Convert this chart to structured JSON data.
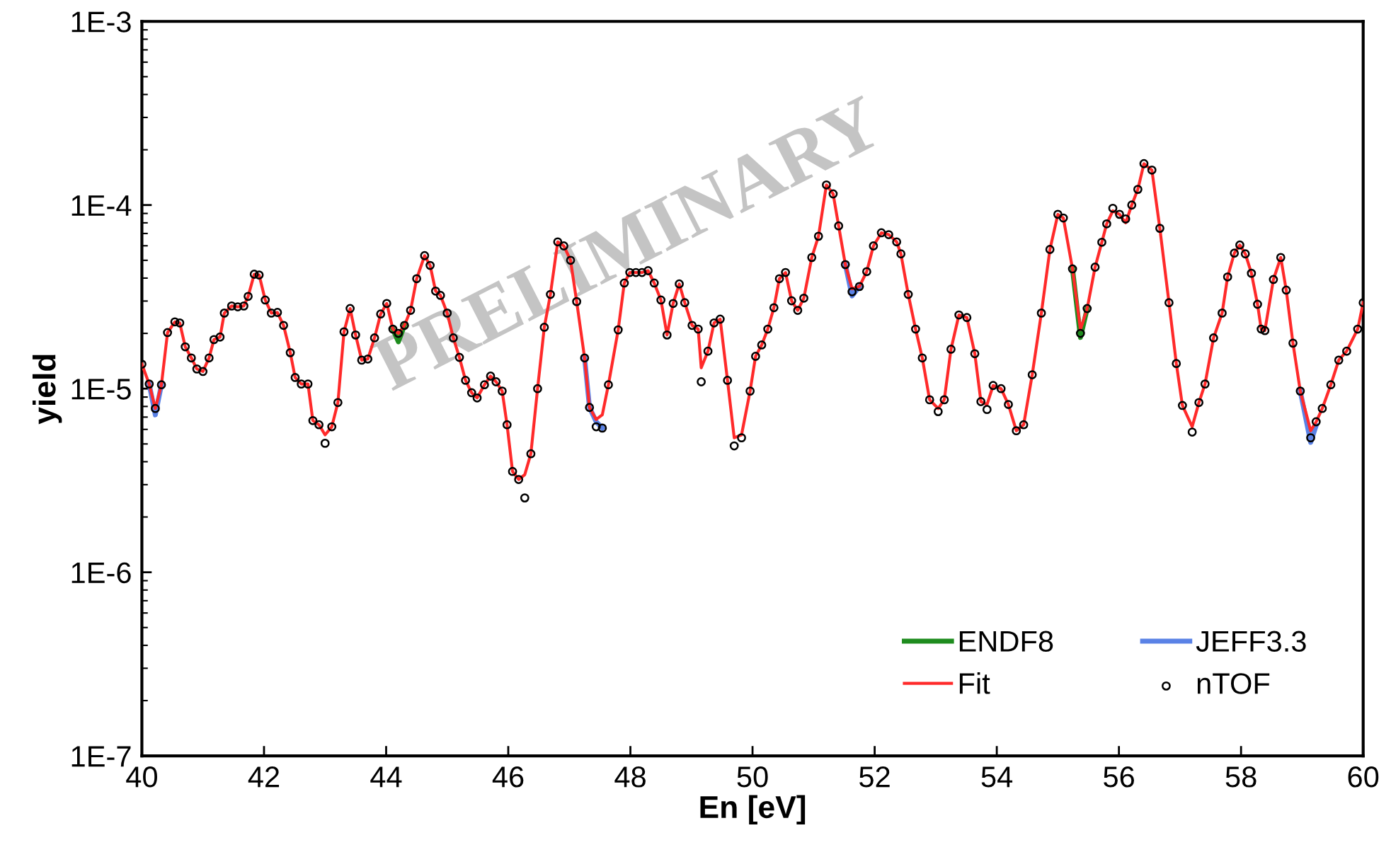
{
  "chart_data": {
    "type": "line",
    "xlabel": "En [eV]",
    "ylabel": "yield",
    "log": "y",
    "xlim": [
      40,
      60
    ],
    "xticks": [
      40,
      42,
      44,
      46,
      48,
      50,
      52,
      54,
      56,
      58,
      60
    ],
    "ylim": [
      1e-07,
      0.001
    ],
    "yticks": [
      {
        "value": 1e-07,
        "label": "1E-7"
      },
      {
        "value": 1e-06,
        "label": "1E-6"
      },
      {
        "value": 1e-05,
        "label": "1E-5"
      },
      {
        "value": 0.0001,
        "label": "1E-4"
      },
      {
        "value": 0.001,
        "label": "1E-3"
      }
    ],
    "grid": false,
    "legend": "bottom right",
    "x": [
      40.0,
      40.12,
      40.22,
      40.32,
      40.42,
      40.54,
      40.62,
      40.71,
      40.81,
      40.9,
      41.0,
      41.1,
      41.18,
      41.28,
      41.35,
      41.47,
      41.57,
      41.67,
      41.74,
      41.84,
      41.92,
      42.02,
      42.12,
      42.22,
      42.32,
      42.43,
      42.51,
      42.61,
      42.72,
      42.8,
      42.9,
      43.0,
      43.11,
      43.21,
      43.31,
      43.41,
      43.5,
      43.6,
      43.7,
      43.81,
      43.91,
      44.01,
      44.11,
      44.2,
      44.3,
      44.4,
      44.5,
      44.63,
      44.72,
      44.81,
      44.89,
      45.0,
      45.1,
      45.2,
      45.3,
      45.4,
      45.49,
      45.61,
      45.71,
      45.8,
      45.9,
      45.98,
      46.07,
      46.17,
      46.27,
      46.37,
      46.48,
      46.59,
      46.69,
      46.81,
      46.91,
      47.02,
      47.12,
      47.25,
      47.33,
      47.44,
      47.54,
      47.64,
      47.8,
      47.9,
      47.99,
      48.09,
      48.19,
      48.29,
      48.39,
      48.5,
      48.6,
      48.7,
      48.8,
      48.89,
      49.01,
      49.11,
      49.16,
      49.27,
      49.37,
      49.47,
      49.59,
      49.7,
      49.82,
      49.96,
      50.05,
      50.15,
      50.25,
      50.35,
      50.44,
      50.54,
      50.64,
      50.74,
      50.84,
      50.97,
      51.08,
      51.21,
      51.32,
      51.41,
      51.52,
      51.63,
      51.75,
      51.87,
      51.98,
      52.11,
      52.23,
      52.36,
      52.43,
      52.55,
      52.67,
      52.78,
      52.9,
      53.04,
      53.14,
      53.25,
      53.38,
      53.51,
      53.64,
      53.74,
      53.84,
      53.94,
      54.07,
      54.19,
      54.32,
      54.44,
      54.58,
      54.73,
      54.87,
      55.0,
      55.09,
      55.24,
      55.37,
      55.48,
      55.61,
      55.72,
      55.8,
      55.9,
      56.01,
      56.11,
      56.21,
      56.31,
      56.41,
      56.54,
      56.67,
      56.82,
      56.94,
      57.04,
      57.2,
      57.31,
      57.41,
      57.55,
      57.69,
      57.78,
      57.89,
      57.98,
      58.07,
      58.17,
      58.27,
      58.33,
      58.39,
      58.53,
      58.65,
      58.74,
      58.85,
      58.97,
      59.14,
      59.23,
      59.33,
      59.47,
      59.6,
      59.73,
      59.91,
      60.0
    ],
    "series": [
      {
        "name": "ENDF8",
        "color": "#1e8c1e",
        "x": [
          44.11,
          44.2,
          44.3,
          50.0,
          55.24,
          55.37,
          55.48
        ],
        "values": [
          2.11e-05,
          1.8e-05,
          2.21e-05,
          null,
          4.49e-05,
          1.9e-05,
          2.73e-05
        ]
      },
      {
        "name": "JEFF3.3",
        "color": "#5a82e6",
        "x": [
          40.12,
          40.22,
          40.32,
          43.0,
          47.25,
          47.33,
          47.44,
          47.54,
          49.0,
          51.52,
          51.63,
          51.75,
          55.0,
          58.97,
          59.14,
          59.23
        ],
        "values": [
          1.06e-05,
          7.2e-06,
          1.05e-05,
          null,
          1.47e-05,
          7.9e-06,
          6.6e-06,
          6.1e-06,
          null,
          4.74e-05,
          3.2e-05,
          3.6e-05,
          null,
          9.7e-06,
          5.1e-06,
          6.3e-06
        ]
      },
      {
        "name": "Fit",
        "color": "#ff2a2a",
        "values": [
          1.36e-05,
          1.06e-05,
          7.8e-06,
          1.05e-05,
          2.02e-05,
          2.31e-05,
          2.28e-05,
          1.69e-05,
          1.47e-05,
          1.28e-05,
          1.24e-05,
          1.47e-05,
          1.85e-05,
          1.91e-05,
          2.58e-05,
          2.82e-05,
          2.79e-05,
          2.82e-05,
          3.18e-05,
          4.2e-05,
          4.16e-05,
          3.04e-05,
          2.58e-05,
          2.6e-05,
          2.21e-05,
          1.57e-05,
          1.15e-05,
          1.06e-05,
          1.06e-05,
          6.7e-06,
          6.36e-06,
          5.6e-06,
          6.2e-06,
          8.4e-06,
          2.04e-05,
          2.73e-05,
          1.96e-05,
          1.43e-05,
          1.45e-05,
          1.89e-05,
          2.55e-05,
          2.91e-05,
          2.11e-05,
          2e-05,
          2.21e-05,
          2.67e-05,
          3.97e-05,
          5.3e-05,
          4.69e-05,
          3.4e-05,
          3.22e-05,
          2.58e-05,
          1.89e-05,
          1.48e-05,
          1.11e-05,
          9.5e-06,
          8.9e-06,
          1.05e-05,
          1.17e-05,
          1.09e-05,
          9.7e-06,
          6.36e-06,
          3.54e-06,
          3.2e-06,
          3.4e-06,
          4.42e-06,
          1e-05,
          2.16e-05,
          3.26e-05,
          6.3e-05,
          5.99e-05,
          5e-05,
          2.98e-05,
          1.47e-05,
          7.9e-06,
          6.8e-06,
          7.2e-06,
          1.05e-05,
          2.09e-05,
          3.76e-05,
          4.29e-05,
          4.29e-05,
          4.29e-05,
          4.39e-05,
          3.76e-05,
          3.04e-05,
          1.96e-05,
          2.91e-05,
          3.72e-05,
          2.94e-05,
          2.21e-05,
          2.11e-05,
          1.3e-05,
          1.6e-05,
          2.28e-05,
          2.39e-05,
          1.11e-05,
          5.4e-06,
          5.6e-06,
          9.7e-06,
          1.5e-05,
          1.73e-05,
          2.11e-05,
          2.76e-05,
          3.97e-05,
          4.29e-05,
          3.01e-05,
          2.67e-05,
          3.11e-05,
          5.18e-05,
          6.76e-05,
          0.0001287,
          0.000115,
          7.7e-05,
          4.74e-05,
          3.5e-05,
          3.6e-05,
          4.34e-05,
          5.99e-05,
          7.06e-05,
          6.9e-05,
          6.3e-05,
          5.42e-05,
          3.26e-05,
          2.11e-05,
          1.47e-05,
          8.7e-06,
          7.8e-06,
          8.7e-06,
          1.64e-05,
          2.52e-05,
          2.44e-05,
          1.55e-05,
          8.5e-06,
          8.2e-06,
          1.04e-05,
          1e-05,
          8.2e-06,
          5.9e-06,
          6.36e-06,
          1.19e-05,
          2.58e-05,
          5.73e-05,
          8.9e-05,
          8.5e-05,
          4.49e-05,
          2.1e-05,
          2.73e-05,
          4.59e-05,
          6.27e-05,
          7.9e-05,
          9.3e-05,
          8.9e-05,
          8e-05,
          0.0001,
          0.0001217,
          0.000168,
          0.000155,
          7.47e-05,
          2.94e-05,
          1.37e-05,
          8.1e-06,
          6.2e-06,
          8.4e-06,
          1.06e-05,
          1.89e-05,
          2.58e-05,
          4.06e-05,
          5.47e-05,
          6.06e-05,
          5.42e-05,
          4.25e-05,
          2.88e-05,
          2.11e-05,
          2.07e-05,
          3.93e-05,
          5.18e-05,
          3.44e-05,
          1.77e-05,
          9.7e-06,
          5.9e-06,
          6.6e-06,
          7.8e-06,
          1.05e-05,
          1.43e-05,
          1.6e-05,
          2.11e-05,
          2.94e-05
        ]
      },
      {
        "name": "nTOF",
        "type": "scatter",
        "marker": "circle",
        "color": "#000000",
        "values": [
          1.36e-05,
          1.06e-05,
          7.8e-06,
          1.05e-05,
          2.02e-05,
          2.31e-05,
          2.28e-05,
          1.69e-05,
          1.47e-05,
          1.28e-05,
          1.24e-05,
          1.47e-05,
          1.85e-05,
          1.91e-05,
          2.58e-05,
          2.82e-05,
          2.79e-05,
          2.82e-05,
          3.18e-05,
          4.2e-05,
          4.16e-05,
          3.04e-05,
          2.58e-05,
          2.6e-05,
          2.21e-05,
          1.57e-05,
          1.15e-05,
          1.06e-05,
          1.06e-05,
          6.7e-06,
          6.36e-06,
          5.04e-06,
          6.2e-06,
          8.4e-06,
          2.04e-05,
          2.73e-05,
          1.96e-05,
          1.43e-05,
          1.45e-05,
          1.89e-05,
          2.55e-05,
          2.91e-05,
          2.11e-05,
          2e-05,
          2.21e-05,
          2.67e-05,
          3.97e-05,
          5.3e-05,
          4.69e-05,
          3.4e-05,
          3.22e-05,
          2.58e-05,
          1.89e-05,
          1.48e-05,
          1.11e-05,
          9.5e-06,
          8.9e-06,
          1.05e-05,
          1.17e-05,
          1.09e-05,
          9.7e-06,
          6.36e-06,
          3.54e-06,
          3.2e-06,
          2.54e-06,
          4.42e-06,
          1e-05,
          2.16e-05,
          3.26e-05,
          6.3e-05,
          5.99e-05,
          5e-05,
          2.98e-05,
          1.47e-05,
          7.9e-06,
          6.2e-06,
          6.1e-06,
          1.05e-05,
          2.09e-05,
          3.76e-05,
          4.29e-05,
          4.29e-05,
          4.29e-05,
          4.39e-05,
          3.76e-05,
          3.04e-05,
          1.96e-05,
          2.91e-05,
          3.72e-05,
          2.94e-05,
          2.21e-05,
          2.11e-05,
          1.09e-05,
          1.6e-05,
          2.28e-05,
          2.39e-05,
          1.11e-05,
          4.88e-06,
          5.4e-06,
          9.7e-06,
          1.5e-05,
          1.73e-05,
          2.11e-05,
          2.76e-05,
          3.97e-05,
          4.29e-05,
          3.01e-05,
          2.67e-05,
          3.11e-05,
          5.18e-05,
          6.76e-05,
          0.0001287,
          0.000115,
          7.7e-05,
          4.74e-05,
          3.37e-05,
          3.6e-05,
          4.34e-05,
          5.99e-05,
          7.06e-05,
          6.9e-05,
          6.3e-05,
          5.42e-05,
          3.26e-05,
          2.11e-05,
          1.47e-05,
          8.7e-06,
          7.5e-06,
          8.7e-06,
          1.64e-05,
          2.52e-05,
          2.44e-05,
          1.55e-05,
          8.5e-06,
          7.7e-06,
          1.04e-05,
          1e-05,
          8.2e-06,
          5.9e-06,
          6.36e-06,
          1.19e-05,
          2.58e-05,
          5.73e-05,
          8.9e-05,
          8.5e-05,
          4.49e-05,
          2e-05,
          2.73e-05,
          4.59e-05,
          6.27e-05,
          7.9e-05,
          9.6e-05,
          8.9e-05,
          8.4e-05,
          0.0001,
          0.0001217,
          0.000168,
          0.000155,
          7.47e-05,
          2.94e-05,
          1.37e-05,
          8.1e-06,
          5.8e-06,
          8.4e-06,
          1.06e-05,
          1.89e-05,
          2.58e-05,
          4.06e-05,
          5.47e-05,
          6.06e-05,
          5.42e-05,
          4.25e-05,
          2.88e-05,
          2.11e-05,
          2.07e-05,
          3.93e-05,
          5.18e-05,
          3.44e-05,
          1.77e-05,
          9.7e-06,
          5.4e-06,
          6.6e-06,
          7.8e-06,
          1.05e-05,
          1.43e-05,
          1.6e-05,
          2.11e-05,
          2.94e-05
        ]
      }
    ],
    "annotations": [
      "PRELIMINARY"
    ]
  }
}
